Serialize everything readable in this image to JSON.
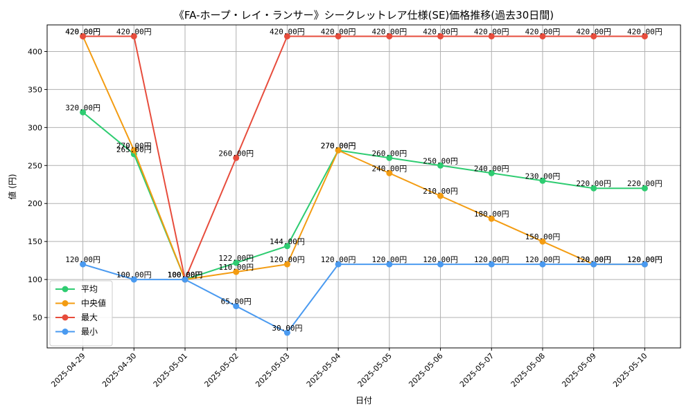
{
  "chart_data": {
    "type": "line",
    "title": "《FA-ホープ・レイ・ランサー》シークレットレア仕様(SE)価格推移(過去30日間)",
    "xlabel": "日付",
    "ylabel": "値 (円)",
    "ylim": [
      10,
      435
    ],
    "yticks": [
      50,
      100,
      150,
      200,
      250,
      300,
      350,
      400
    ],
    "grid": true,
    "legend_position": "lower-left",
    "value_suffix": "円",
    "categories": [
      "2025-04-29",
      "2025-04-30",
      "2025-05-01",
      "2025-05-02",
      "2025-05-03",
      "2025-05-04",
      "2025-05-05",
      "2025-05-06",
      "2025-05-07",
      "2025-05-08",
      "2025-05-09",
      "2025-05-10"
    ],
    "series": [
      {
        "name": "平均",
        "color": "#2ecc71",
        "values": [
          320,
          265,
          100,
          122,
          144,
          270,
          260,
          250,
          240,
          230,
          220,
          220
        ]
      },
      {
        "name": "中央値",
        "color": "#f39c12",
        "values": [
          420,
          270,
          100,
          110,
          120,
          270,
          240,
          210,
          180,
          150,
          120,
          120
        ]
      },
      {
        "name": "最大",
        "color": "#e74c3c",
        "values": [
          420,
          420,
          100,
          260,
          420,
          420,
          420,
          420,
          420,
          420,
          420,
          420
        ]
      },
      {
        "name": "最小",
        "color": "#4a9af0",
        "values": [
          120,
          100,
          100,
          65,
          30,
          120,
          120,
          120,
          120,
          120,
          120,
          120
        ]
      }
    ]
  }
}
